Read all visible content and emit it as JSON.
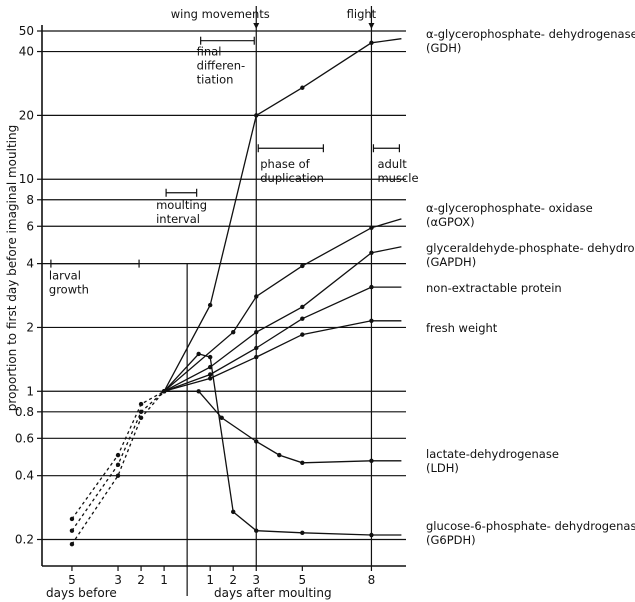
{
  "chart_data": {
    "type": "line",
    "title": "",
    "ylabel": "proportion to first day before imaginal moulting",
    "xlabel_left": "days before",
    "xlabel_right": "days after moulting",
    "yscale": "log",
    "ylim": [
      0.15,
      50
    ],
    "xlim": [
      -6.3,
      9.5
    ],
    "yticks": [
      {
        "v": 0.2,
        "label": "0.2"
      },
      {
        "v": 0.4,
        "label": "0.4"
      },
      {
        "v": 0.6,
        "label": "0.6"
      },
      {
        "v": 0.8,
        "label": "0.8"
      },
      {
        "v": 1,
        "label": "1"
      },
      {
        "v": 2,
        "label": "2"
      },
      {
        "v": 4,
        "label": "4"
      },
      {
        "v": 6,
        "label": "6"
      },
      {
        "v": 8,
        "label": "8"
      },
      {
        "v": 10,
        "label": "10"
      },
      {
        "v": 20,
        "label": "20"
      },
      {
        "v": 40,
        "label": "40"
      },
      {
        "v": 50,
        "label": "50"
      }
    ],
    "xticks": [
      {
        "v": -5,
        "label": "5"
      },
      {
        "v": -3,
        "label": "3"
      },
      {
        "v": -2,
        "label": "2"
      },
      {
        "v": -1,
        "label": "1"
      },
      {
        "v": 1,
        "label": "1"
      },
      {
        "v": 2,
        "label": "2"
      },
      {
        "v": 3,
        "label": "3"
      },
      {
        "v": 5,
        "label": "5"
      },
      {
        "v": 8,
        "label": "8"
      }
    ],
    "phases": [
      {
        "label": "larval growth",
        "x": [
          -6,
          -2
        ]
      },
      {
        "label": "moulting interval",
        "x": [
          -1,
          0.5
        ]
      },
      {
        "label": "final differen- tiation",
        "x": [
          0.5,
          3
        ]
      },
      {
        "label": "phase of duplication",
        "x": [
          3,
          6
        ]
      },
      {
        "label": "adult muscle",
        "x": [
          8,
          9.3
        ]
      }
    ],
    "events": [
      {
        "label": "wing movements",
        "x": 3
      },
      {
        "label": "flight",
        "x": 8
      }
    ],
    "series": [
      {
        "name": "α-glycerophosphate- dehydrogenase (GDH)",
        "points": [
          [
            -5,
            0.25
          ],
          [
            -3,
            0.5
          ],
          [
            -2,
            0.87
          ],
          [
            -1,
            1
          ],
          [
            1,
            2.55
          ],
          [
            3,
            20
          ],
          [
            5,
            27
          ],
          [
            8,
            44
          ],
          [
            9.3,
            46
          ]
        ]
      },
      {
        "name": "α-glycerophosphate- oxidase (αGPOX)",
        "points": [
          [
            -5,
            0.22
          ],
          [
            -3,
            0.45
          ],
          [
            -2,
            0.8
          ],
          [
            -1,
            1
          ],
          [
            2,
            1.9
          ],
          [
            3,
            2.8
          ],
          [
            5,
            3.9
          ],
          [
            8,
            5.9
          ],
          [
            9.3,
            6.5
          ]
        ]
      },
      {
        "name": "glyceraldehyde-phosphate- dehydrogenase (GAPDH)",
        "points": [
          [
            -5,
            0.19
          ],
          [
            -3,
            0.4
          ],
          [
            -2,
            0.75
          ],
          [
            -1,
            1
          ],
          [
            1,
            1.3
          ],
          [
            3,
            1.9
          ],
          [
            5,
            2.5
          ],
          [
            8,
            4.5
          ],
          [
            9.3,
            4.8
          ]
        ]
      },
      {
        "name": "non-extractable protein",
        "points": [
          [
            -1,
            1
          ],
          [
            1,
            1.2
          ],
          [
            3,
            1.6
          ],
          [
            5,
            2.2
          ],
          [
            8,
            3.1
          ],
          [
            9.3,
            3.1
          ]
        ]
      },
      {
        "name": "fresh weight",
        "points": [
          [
            -1,
            1
          ],
          [
            1,
            1.15
          ],
          [
            3,
            1.45
          ],
          [
            5,
            1.85
          ],
          [
            8,
            2.15
          ],
          [
            9.3,
            2.15
          ]
        ]
      },
      {
        "name": "lactate-dehydrogenase (LDH)",
        "points": [
          [
            -1,
            1
          ],
          [
            0.5,
            1
          ],
          [
            1.5,
            0.75
          ],
          [
            3,
            0.58
          ],
          [
            4,
            0.5
          ],
          [
            5,
            0.46
          ],
          [
            8,
            0.47
          ],
          [
            9.3,
            0.47
          ]
        ]
      },
      {
        "name": "glucose-6-phosphate- dehydrogenase (G6PDH)",
        "points": [
          [
            -1,
            1
          ],
          [
            0.5,
            1.5
          ],
          [
            1,
            1.45
          ],
          [
            2,
            0.27
          ],
          [
            3,
            0.22
          ],
          [
            5,
            0.215
          ],
          [
            8,
            0.21
          ],
          [
            9.3,
            0.21
          ]
        ]
      }
    ]
  }
}
